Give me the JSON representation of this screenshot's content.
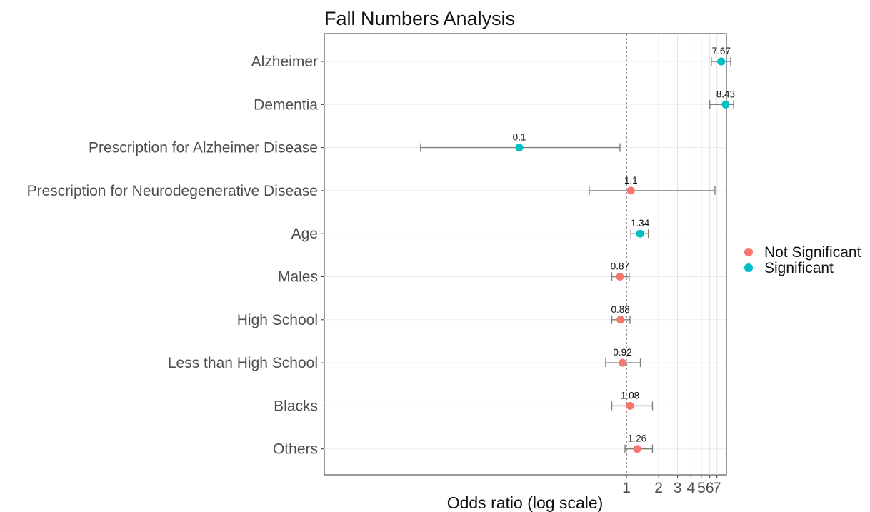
{
  "chart_data": {
    "type": "scatter",
    "subtype": "forest-plot",
    "title": "Fall Numbers Analysis",
    "xlabel": "Odds ratio (log scale)",
    "ylabel": "",
    "x_scale": "log",
    "xlim": [
      0.05,
      17
    ],
    "x_ticks": [
      1,
      2,
      3,
      4,
      5,
      6,
      7
    ],
    "x_tick_labels": [
      "1",
      "2",
      "3",
      "4",
      "5",
      "6",
      "7"
    ],
    "reference_line": 1,
    "grid": true,
    "legend_position": "right",
    "groups": [
      {
        "name": "Not Significant",
        "color": "#F8766D"
      },
      {
        "name": "Significant",
        "color": "#00BFC4"
      }
    ],
    "rows": [
      {
        "label": "Alzheimer",
        "or": 7.67,
        "lower": 6.2,
        "upper": 9.4,
        "group": "Significant",
        "value_label": "7.67"
      },
      {
        "label": "Dementia",
        "or": 8.43,
        "lower": 6.0,
        "upper": 10.0,
        "group": "Significant",
        "value_label": "8.43"
      },
      {
        "label": "Prescription for Alzheimer Disease",
        "or": 0.1,
        "lower": 0.012,
        "upper": 0.87,
        "group": "Significant",
        "value_label": "0.1"
      },
      {
        "label": "Prescription for Neurodegenerative Disease",
        "or": 1.1,
        "lower": 0.45,
        "upper": 6.7,
        "group": "Not Significant",
        "value_label": "1.1"
      },
      {
        "label": "Age",
        "or": 1.34,
        "lower": 1.1,
        "upper": 1.6,
        "group": "Significant",
        "value_label": "1.34"
      },
      {
        "label": "Males",
        "or": 0.87,
        "lower": 0.73,
        "upper": 1.06,
        "group": "Not Significant",
        "value_label": "0.87"
      },
      {
        "label": "High School",
        "or": 0.88,
        "lower": 0.73,
        "upper": 1.08,
        "group": "Not Significant",
        "value_label": "0.88"
      },
      {
        "label": "Less than High School",
        "or": 0.92,
        "lower": 0.64,
        "upper": 1.35,
        "group": "Not Significant",
        "value_label": "0.92"
      },
      {
        "label": "Blacks",
        "or": 1.08,
        "lower": 0.73,
        "upper": 1.75,
        "group": "Not Significant",
        "value_label": "1.08"
      },
      {
        "label": "Others",
        "or": 1.26,
        "lower": 0.97,
        "upper": 1.75,
        "group": "Not Significant",
        "value_label": "1.26"
      }
    ]
  }
}
